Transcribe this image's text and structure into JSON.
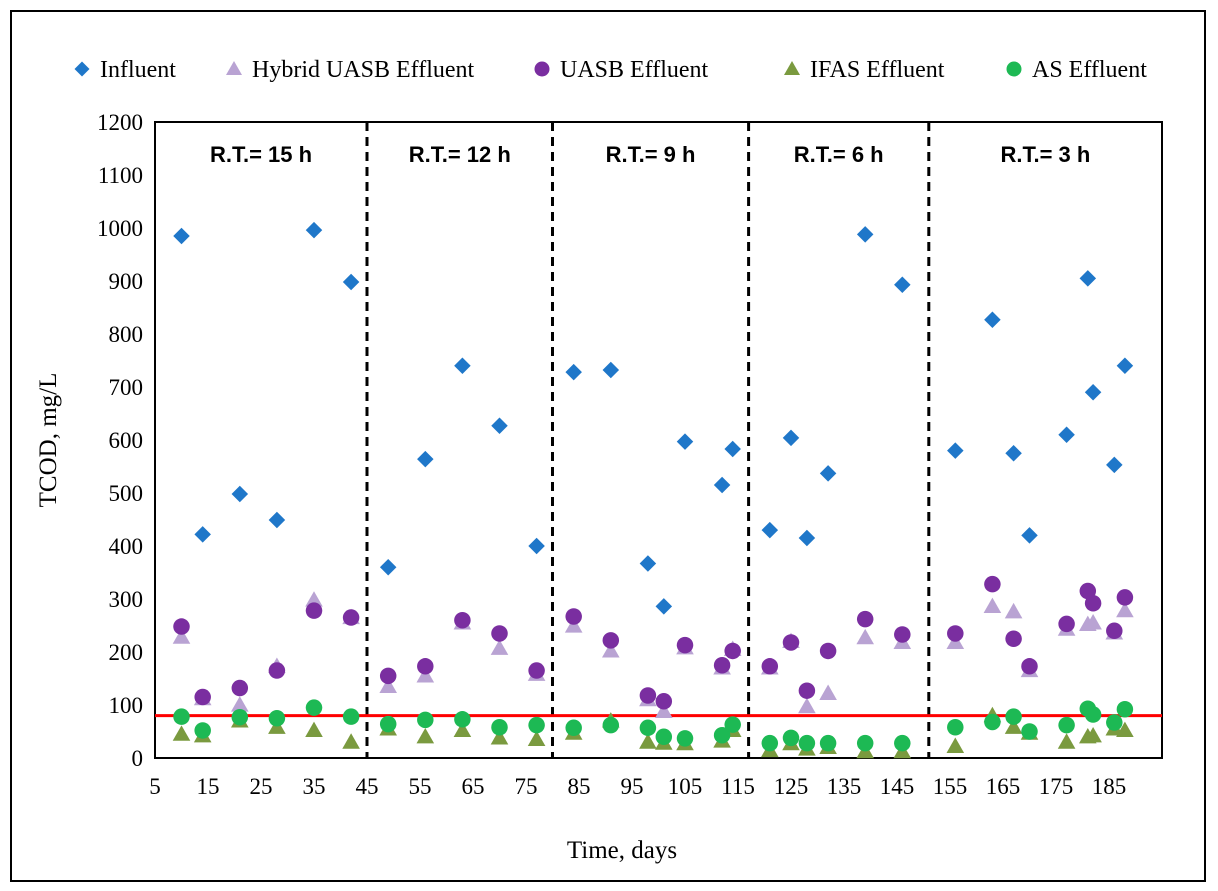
{
  "chart_data": {
    "type": "scatter",
    "title": "",
    "xlabel": "Time, days",
    "ylabel": "TCOD, mg/L",
    "xlim": [
      5,
      195
    ],
    "ylim": [
      0,
      1200
    ],
    "xticks": [
      5,
      15,
      25,
      35,
      45,
      55,
      65,
      75,
      85,
      95,
      105,
      115,
      125,
      135,
      145,
      155,
      165,
      175,
      185
    ],
    "yticks": [
      0,
      100,
      200,
      300,
      400,
      500,
      600,
      700,
      800,
      900,
      1000,
      1100,
      1200
    ],
    "grid": false,
    "legend_position": "top",
    "threshold_line": {
      "y": 80,
      "color": "#ff0000"
    },
    "regions": [
      {
        "label": "R.T.= 15 h",
        "x_start": 5,
        "x_end": 45
      },
      {
        "label": "R.T.= 12 h",
        "x_start": 45,
        "x_end": 80
      },
      {
        "label": "R.T.= 9 h",
        "x_start": 80,
        "x_end": 117
      },
      {
        "label": "R.T.= 6 h",
        "x_start": 117,
        "x_end": 151
      },
      {
        "label": "R.T.= 3 h",
        "x_start": 151,
        "x_end": 195
      }
    ],
    "series": [
      {
        "name": "Influent",
        "marker": "diamond",
        "color": "#1f77c9",
        "points": [
          [
            10,
            985
          ],
          [
            14,
            422
          ],
          [
            21,
            498
          ],
          [
            28,
            449
          ],
          [
            35,
            996
          ],
          [
            42,
            898
          ],
          [
            49,
            360
          ],
          [
            56,
            564
          ],
          [
            63,
            740
          ],
          [
            70,
            627
          ],
          [
            77,
            400
          ],
          [
            84,
            728
          ],
          [
            91,
            732
          ],
          [
            98,
            367
          ],
          [
            101,
            286
          ],
          [
            105,
            597
          ],
          [
            112,
            515
          ],
          [
            114,
            583
          ],
          [
            121,
            430
          ],
          [
            125,
            604
          ],
          [
            128,
            415
          ],
          [
            132,
            537
          ],
          [
            139,
            988
          ],
          [
            146,
            893
          ],
          [
            156,
            580
          ],
          [
            163,
            827
          ],
          [
            167,
            575
          ],
          [
            170,
            420
          ],
          [
            177,
            610
          ],
          [
            181,
            905
          ],
          [
            182,
            690
          ],
          [
            186,
            553
          ],
          [
            188,
            740
          ]
        ]
      },
      {
        "name": "Hybrid UASB Effluent",
        "marker": "triangle",
        "color": "#b9a3d3",
        "points": [
          [
            10,
            228
          ],
          [
            14,
            112
          ],
          [
            21,
            100
          ],
          [
            28,
            173
          ],
          [
            35,
            298
          ],
          [
            42,
            265
          ],
          [
            49,
            135
          ],
          [
            56,
            155
          ],
          [
            63,
            255
          ],
          [
            70,
            207
          ],
          [
            77,
            158
          ],
          [
            84,
            249
          ],
          [
            91,
            202
          ],
          [
            98,
            110
          ],
          [
            101,
            88
          ],
          [
            105,
            208
          ],
          [
            112,
            170
          ],
          [
            114,
            205
          ],
          [
            121,
            170
          ],
          [
            125,
            220
          ],
          [
            128,
            97
          ],
          [
            132,
            122
          ],
          [
            139,
            227
          ],
          [
            146,
            218
          ],
          [
            156,
            218
          ],
          [
            163,
            286
          ],
          [
            167,
            276
          ],
          [
            170,
            165
          ],
          [
            177,
            243
          ],
          [
            181,
            252
          ],
          [
            182,
            255
          ],
          [
            186,
            236
          ],
          [
            188,
            278
          ]
        ]
      },
      {
        "name": "UASB Effluent",
        "marker": "circle",
        "color": "#7a2ea0",
        "points": [
          [
            10,
            248
          ],
          [
            14,
            115
          ],
          [
            21,
            132
          ],
          [
            28,
            165
          ],
          [
            35,
            278
          ],
          [
            42,
            265
          ],
          [
            49,
            155
          ],
          [
            56,
            173
          ],
          [
            63,
            260
          ],
          [
            70,
            235
          ],
          [
            77,
            165
          ],
          [
            84,
            267
          ],
          [
            91,
            222
          ],
          [
            98,
            118
          ],
          [
            101,
            107
          ],
          [
            105,
            213
          ],
          [
            112,
            175
          ],
          [
            114,
            202
          ],
          [
            121,
            173
          ],
          [
            125,
            218
          ],
          [
            128,
            127
          ],
          [
            132,
            202
          ],
          [
            139,
            262
          ],
          [
            146,
            233
          ],
          [
            156,
            235
          ],
          [
            163,
            328
          ],
          [
            167,
            225
          ],
          [
            170,
            173
          ],
          [
            177,
            253
          ],
          [
            181,
            315
          ],
          [
            182,
            292
          ],
          [
            186,
            240
          ],
          [
            188,
            303
          ]
        ]
      },
      {
        "name": "IFAS Effluent",
        "marker": "triangle",
        "color": "#7a9a3f",
        "points": [
          [
            10,
            45
          ],
          [
            14,
            42
          ],
          [
            21,
            70
          ],
          [
            28,
            58
          ],
          [
            35,
            52
          ],
          [
            42,
            30
          ],
          [
            49,
            55
          ],
          [
            56,
            40
          ],
          [
            63,
            52
          ],
          [
            70,
            38
          ],
          [
            77,
            35
          ],
          [
            84,
            47
          ],
          [
            91,
            70
          ],
          [
            98,
            30
          ],
          [
            101,
            28
          ],
          [
            105,
            27
          ],
          [
            112,
            32
          ],
          [
            114,
            52
          ],
          [
            121,
            14
          ],
          [
            125,
            27
          ],
          [
            128,
            17
          ],
          [
            132,
            20
          ],
          [
            139,
            12
          ],
          [
            146,
            12
          ],
          [
            156,
            22
          ],
          [
            163,
            80
          ],
          [
            167,
            58
          ],
          [
            170,
            47
          ],
          [
            177,
            30
          ],
          [
            181,
            40
          ],
          [
            182,
            42
          ],
          [
            186,
            55
          ],
          [
            188,
            52
          ]
        ]
      },
      {
        "name": "AS Effluent",
        "marker": "circle",
        "color": "#1db954",
        "points": [
          [
            10,
            78
          ],
          [
            14,
            52
          ],
          [
            21,
            77
          ],
          [
            28,
            75
          ],
          [
            35,
            95
          ],
          [
            42,
            78
          ],
          [
            49,
            64
          ],
          [
            56,
            72
          ],
          [
            63,
            73
          ],
          [
            70,
            58
          ],
          [
            77,
            62
          ],
          [
            84,
            57
          ],
          [
            91,
            62
          ],
          [
            98,
            57
          ],
          [
            101,
            40
          ],
          [
            105,
            37
          ],
          [
            112,
            43
          ],
          [
            114,
            63
          ],
          [
            121,
            28
          ],
          [
            125,
            38
          ],
          [
            128,
            28
          ],
          [
            132,
            28
          ],
          [
            139,
            28
          ],
          [
            146,
            28
          ],
          [
            156,
            58
          ],
          [
            163,
            68
          ],
          [
            167,
            78
          ],
          [
            170,
            50
          ],
          [
            177,
            62
          ],
          [
            181,
            93
          ],
          [
            182,
            82
          ],
          [
            186,
            67
          ],
          [
            188,
            92
          ]
        ]
      }
    ]
  }
}
